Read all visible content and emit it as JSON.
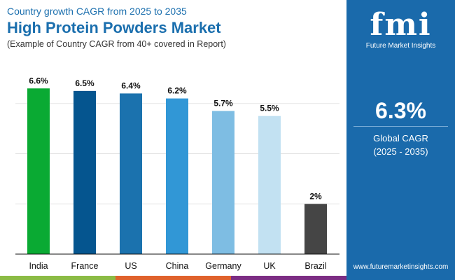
{
  "header": {
    "subtitle": "Country growth CAGR from 2025 to 2035",
    "title": "High Protein Powders Market",
    "note": "(Example of Country CAGR from 40+ covered in Report)"
  },
  "panel": {
    "logo_text": "fmi",
    "logo_sub": "Future Market Insights",
    "global_value": "6.3%",
    "global_label": "Global CAGR",
    "global_period": "(2025 - 2035)",
    "url": "www.futuremarketinsights.com",
    "bg": "#1a6aab"
  },
  "chart_data": {
    "type": "bar",
    "categories": [
      "India",
      "France",
      "US",
      "China",
      "Germany",
      "UK",
      "Brazil"
    ],
    "values": [
      6.6,
      6.5,
      6.4,
      6.2,
      5.7,
      5.5,
      2
    ],
    "labels": [
      "6.6%",
      "6.5%",
      "6.4%",
      "6.2%",
      "5.7%",
      "5.5%",
      "2%"
    ],
    "colors": [
      "#0aaa33",
      "#05558f",
      "#1b72ae",
      "#3197d6",
      "#7ebde3",
      "#c2e1f2",
      "#454545"
    ],
    "ylim": [
      0,
      7.5
    ],
    "grid": true,
    "title": "",
    "xlabel": "",
    "ylabel": ""
  },
  "strip_colors": [
    "#8bbb45",
    "#e0622c",
    "#7c2d84"
  ]
}
